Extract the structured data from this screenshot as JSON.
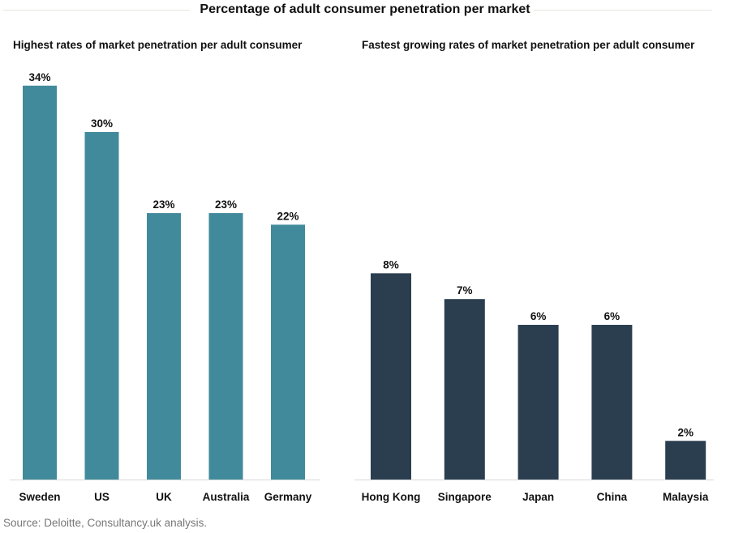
{
  "title": "Percentage of adult consumer penetration per market",
  "source": "Source: Deloitte, Consultancy.uk analysis.",
  "chart_data": [
    {
      "type": "bar",
      "title": "Highest rates of market penetration per adult consumer",
      "categories": [
        "Sweden",
        "US",
        "UK",
        "Australia",
        "Germany"
      ],
      "values": [
        34,
        30,
        23,
        23,
        22
      ],
      "data_labels": [
        "34%",
        "30%",
        "23%",
        "23%",
        "22%"
      ],
      "ylim": [
        0,
        36.5
      ],
      "grid": false,
      "color": "#418A9B"
    },
    {
      "type": "bar",
      "title": "Fastest growing rates of market penetration per adult consumer",
      "categories": [
        "Hong Kong",
        "Singapore",
        "Japan",
        "China",
        "Malaysia"
      ],
      "values": [
        8,
        7,
        6,
        6,
        1.5
      ],
      "data_labels": [
        "8%",
        "7%",
        "6%",
        "6%",
        "2%"
      ],
      "ylim": [
        0,
        16.4
      ],
      "grid": false,
      "color": "#2B3E50"
    }
  ]
}
